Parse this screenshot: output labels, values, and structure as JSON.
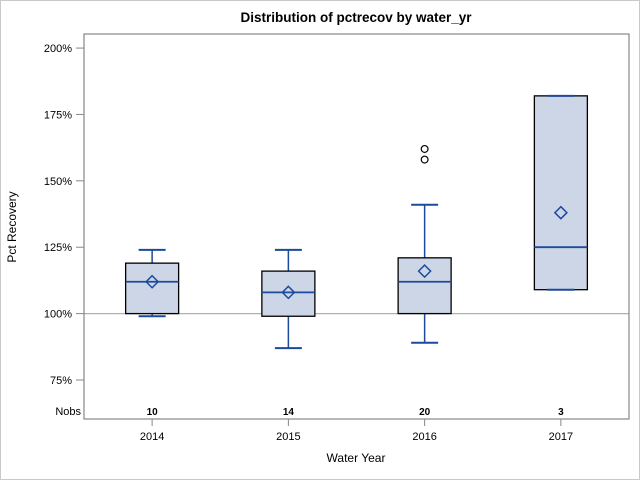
{
  "chart_data": {
    "type": "boxplot",
    "title": "Distribution of pctrecov by water_yr",
    "xlabel": "Water Year",
    "ylabel": "Pct Recovery",
    "nobs_label": "Nobs",
    "y_ticks": [
      75,
      100,
      125,
      150,
      175,
      200
    ],
    "y_tick_suffix": "%",
    "ylim": [
      60.3,
      205.3
    ],
    "reference_line": 100,
    "categories": [
      "2014",
      "2015",
      "2016",
      "2017"
    ],
    "series": [
      {
        "category": "2014",
        "nobs": "10",
        "whisker_low": 99,
        "q1": 100,
        "median": 112,
        "mean": 112,
        "q3": 119,
        "whisker_high": 124,
        "outliers": []
      },
      {
        "category": "2015",
        "nobs": "14",
        "whisker_low": 87,
        "q1": 99,
        "median": 108,
        "mean": 108,
        "q3": 116,
        "whisker_high": 124,
        "outliers": []
      },
      {
        "category": "2016",
        "nobs": "20",
        "whisker_low": 89,
        "q1": 100,
        "median": 112,
        "mean": 116,
        "q3": 121,
        "whisker_high": 141,
        "outliers": [
          158,
          162
        ]
      },
      {
        "category": "2017",
        "nobs": "3",
        "whisker_low": 109,
        "q1": 109,
        "median": 125,
        "mean": 138,
        "q3": 182,
        "whisker_high": 182,
        "outliers": []
      }
    ],
    "legend": "none",
    "grid": "off",
    "colors": {
      "box_fill": "#ccd6e6",
      "box_border": "#000000",
      "blue_line": "#1c4a9c",
      "frame": "#878787",
      "reference_line": "#b0b0b0",
      "outer_border": "#c9c9c9",
      "outlier_stroke": "#000000"
    }
  }
}
